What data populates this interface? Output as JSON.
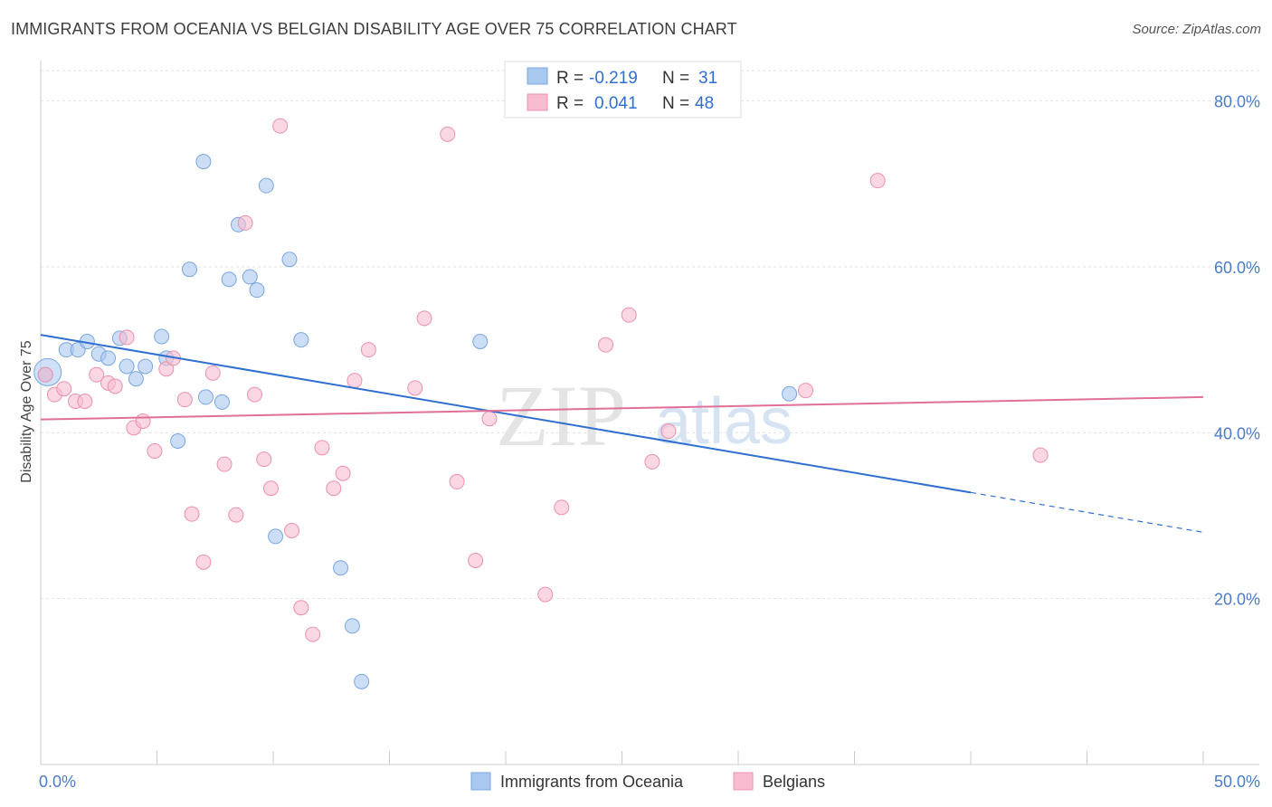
{
  "title": "IMMIGRANTS FROM OCEANIA VS BELGIAN DISABILITY AGE OVER 75 CORRELATION CHART",
  "source": "Source: ZipAtlas.com",
  "watermark": {
    "zip": "ZIP",
    "atlas": "atlas"
  },
  "chart_data": {
    "type": "scatter",
    "ylabel": "Disability Age Over 75",
    "xlim": [
      0,
      50
    ],
    "ylim": [
      0,
      84
    ],
    "x_ticks": [
      {
        "value": 0,
        "label": "0.0%"
      },
      {
        "value": 50,
        "label": "50.0%"
      }
    ],
    "y_ticks": [
      {
        "value": 20,
        "label": "20.0%"
      },
      {
        "value": 40,
        "label": "40.0%"
      },
      {
        "value": 60,
        "label": "60.0%"
      },
      {
        "value": 80,
        "label": "80.0%"
      }
    ],
    "grid": true,
    "legend": [
      {
        "r_label": "R =",
        "r": "-0.219",
        "n_label": "N =",
        "n": "31",
        "color": "#a8c8f0",
        "stroke": "#7aa6e0"
      },
      {
        "r_label": "R =",
        "r": "0.041",
        "n_label": "N =",
        "n": "48",
        "color": "#f7bcd0",
        "stroke": "#ec90b0"
      }
    ],
    "series": [
      {
        "name": "Immigrants from Oceania",
        "color": "#a8c8f0",
        "stroke": "#7aa6e0",
        "line_color": "#2f6fd0",
        "trend": {
          "x0": 0,
          "y0": 51.8,
          "x1": 40,
          "y1": 32.8,
          "dash_x1": 50,
          "dash_y1": 28.0
        },
        "points": [
          [
            0.2,
            47.0
          ],
          [
            1.1,
            50.0
          ],
          [
            1.6,
            50.0
          ],
          [
            2.0,
            51.0
          ],
          [
            2.5,
            49.5
          ],
          [
            2.9,
            49.0
          ],
          [
            3.4,
            51.4
          ],
          [
            3.7,
            48.0
          ],
          [
            4.1,
            46.5
          ],
          [
            4.5,
            48.0
          ],
          [
            5.2,
            51.6
          ],
          [
            5.4,
            49.0
          ],
          [
            5.9,
            39.0
          ],
          [
            6.4,
            59.7
          ],
          [
            7.0,
            72.7
          ],
          [
            7.1,
            44.3
          ],
          [
            7.8,
            43.7
          ],
          [
            8.1,
            58.5
          ],
          [
            8.5,
            65.1
          ],
          [
            9.0,
            58.8
          ],
          [
            9.3,
            57.2
          ],
          [
            9.7,
            69.8
          ],
          [
            10.1,
            27.5
          ],
          [
            10.7,
            60.9
          ],
          [
            11.2,
            51.2
          ],
          [
            12.9,
            23.7
          ],
          [
            13.4,
            16.7
          ],
          [
            13.8,
            10.0
          ],
          [
            18.9,
            51.0
          ],
          [
            32.2,
            44.7
          ],
          [
            0.3,
            47.3
          ]
        ]
      },
      {
        "name": "Belgians",
        "color": "#f7bcd0",
        "stroke": "#ec90b0",
        "line_color": "#e07098",
        "trend": {
          "x0": 0,
          "y0": 41.6,
          "x1": 50,
          "y1": 44.3
        },
        "points": [
          [
            0.2,
            47.0
          ],
          [
            0.6,
            44.6
          ],
          [
            1.0,
            45.3
          ],
          [
            1.5,
            43.8
          ],
          [
            1.9,
            43.8
          ],
          [
            2.4,
            47.0
          ],
          [
            2.9,
            46.0
          ],
          [
            3.2,
            45.6
          ],
          [
            3.7,
            51.5
          ],
          [
            4.0,
            40.6
          ],
          [
            4.4,
            41.4
          ],
          [
            4.9,
            37.8
          ],
          [
            5.4,
            47.7
          ],
          [
            5.7,
            49.0
          ],
          [
            6.2,
            44.0
          ],
          [
            6.5,
            30.2
          ],
          [
            7.0,
            24.4
          ],
          [
            7.4,
            47.2
          ],
          [
            7.9,
            36.2
          ],
          [
            8.4,
            30.1
          ],
          [
            8.8,
            65.3
          ],
          [
            9.2,
            44.6
          ],
          [
            9.6,
            36.8
          ],
          [
            9.9,
            33.3
          ],
          [
            10.3,
            77.0
          ],
          [
            10.8,
            28.2
          ],
          [
            11.2,
            18.9
          ],
          [
            11.7,
            15.7
          ],
          [
            12.1,
            38.2
          ],
          [
            12.6,
            33.3
          ],
          [
            13.0,
            35.1
          ],
          [
            13.5,
            46.3
          ],
          [
            14.1,
            50.0
          ],
          [
            16.1,
            45.4
          ],
          [
            16.5,
            53.8
          ],
          [
            17.5,
            76.0
          ],
          [
            17.9,
            34.1
          ],
          [
            18.7,
            24.6
          ],
          [
            19.3,
            41.7
          ],
          [
            21.7,
            20.5
          ],
          [
            22.4,
            31.0
          ],
          [
            24.3,
            50.6
          ],
          [
            25.3,
            54.2
          ],
          [
            26.3,
            36.5
          ],
          [
            27.0,
            40.2
          ],
          [
            32.9,
            45.1
          ],
          [
            36.0,
            70.4
          ],
          [
            43.0,
            37.3
          ]
        ]
      }
    ]
  },
  "bottom_legend": [
    "Immigrants from Oceania",
    "Belgians"
  ]
}
